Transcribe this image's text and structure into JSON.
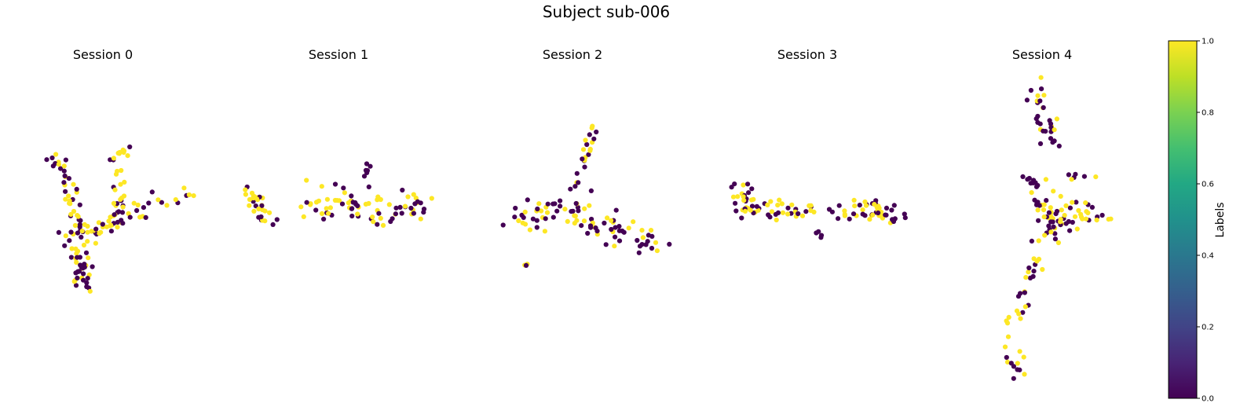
{
  "figure": {
    "title": "Subject sub-006"
  },
  "colors": {
    "label_0": "#440154",
    "label_1": "#fde725"
  },
  "colorbar": {
    "label": "Labels",
    "ticks": [
      "0.0",
      "0.2",
      "0.4",
      "0.6",
      "0.8",
      "1.0"
    ],
    "range": [
      0.0,
      1.0
    ],
    "colormap": "viridis"
  },
  "chart_data": [
    {
      "type": "scatter",
      "title": "Session 0",
      "point_estimate": "approximate cluster shapes; axes hidden"
    },
    {
      "type": "scatter",
      "title": "Session 1",
      "point_estimate": "approximate cluster shapes; axes hidden"
    },
    {
      "type": "scatter",
      "title": "Session 2",
      "point_estimate": "approximate cluster shapes; axes hidden"
    },
    {
      "type": "scatter",
      "title": "Session 3",
      "point_estimate": "approximate cluster shapes; axes hidden"
    },
    {
      "type": "scatter",
      "title": "Session 4",
      "point_estimate": "approximate cluster shapes; axes hidden"
    }
  ]
}
